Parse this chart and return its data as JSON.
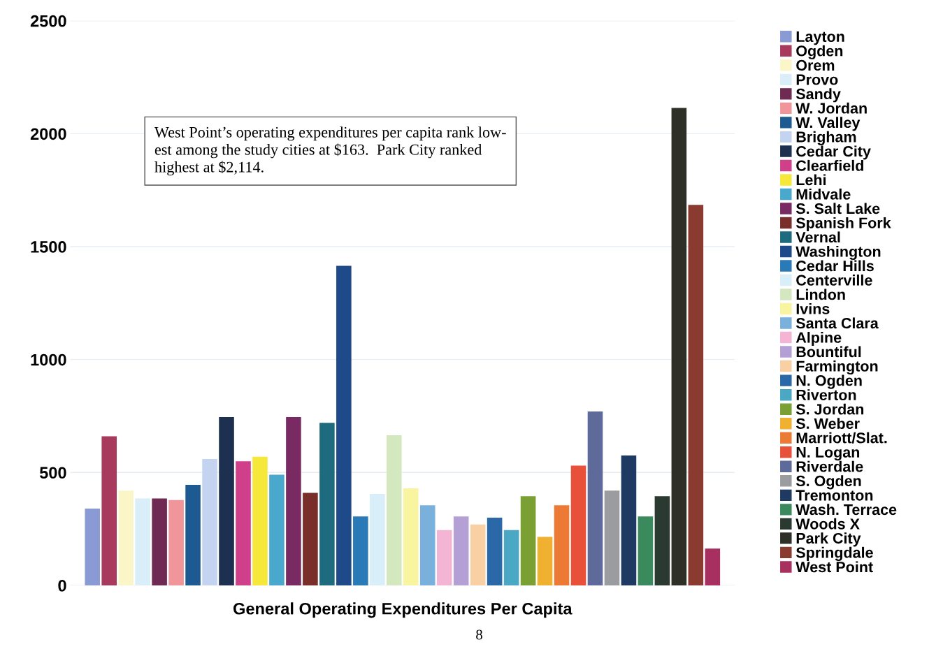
{
  "chart_data": {
    "type": "bar",
    "xlabel": "General Operating Expenditures Per Capita",
    "categories": [
      null
    ],
    "series": [
      {
        "name": "Layton",
        "color": "#8a9ad4",
        "values": [
          340
        ]
      },
      {
        "name": "Ogden",
        "color": "#a83a5e",
        "values": [
          660
        ]
      },
      {
        "name": "Orem",
        "color": "#fbf6c8",
        "values": [
          420
        ]
      },
      {
        "name": "Provo",
        "color": "#d9eef8",
        "values": [
          385
        ]
      },
      {
        "name": "Sandy",
        "color": "#6e2a52",
        "values": [
          385
        ]
      },
      {
        "name": "W. Jordan",
        "color": "#f0959a",
        "values": [
          378
        ]
      },
      {
        "name": "W. Valley",
        "color": "#1e5a92",
        "values": [
          445
        ]
      },
      {
        "name": "Brigham",
        "color": "#c4d4f0",
        "values": [
          560
        ]
      },
      {
        "name": "Cedar City",
        "color": "#1e3050",
        "values": [
          745
        ]
      },
      {
        "name": "Clearfield",
        "color": "#d0408a",
        "values": [
          550
        ]
      },
      {
        "name": "Lehi",
        "color": "#f6e83a",
        "values": [
          570
        ]
      },
      {
        "name": "Midvale",
        "color": "#4aa8cc",
        "values": [
          490
        ]
      },
      {
        "name": "S. Salt Lake",
        "color": "#7a2a62",
        "values": [
          745
        ]
      },
      {
        "name": "Spanish Fork",
        "color": "#7a2e2a",
        "values": [
          410
        ]
      },
      {
        "name": "Vernal",
        "color": "#1e6a7e",
        "values": [
          720
        ]
      },
      {
        "name": "Washington",
        "color": "#1e4a8a",
        "values": [
          1415
        ]
      },
      {
        "name": "Cedar Hills",
        "color": "#2a7ab8",
        "values": [
          305
        ]
      },
      {
        "name": "Centerville",
        "color": "#d8eef8",
        "values": [
          405
        ]
      },
      {
        "name": "Lindon",
        "color": "#d4e8c0",
        "values": [
          665
        ]
      },
      {
        "name": "Ivins",
        "color": "#f8f4a0",
        "values": [
          430
        ]
      },
      {
        "name": "Santa Clara",
        "color": "#7ab0dc",
        "values": [
          355
        ]
      },
      {
        "name": "Alpine",
        "color": "#f4b4d4",
        "values": [
          245
        ]
      },
      {
        "name": "Bountiful",
        "color": "#b4a0d4",
        "values": [
          305
        ]
      },
      {
        "name": "Farmington",
        "color": "#f8d0a4",
        "values": [
          270
        ]
      },
      {
        "name": "N. Ogden",
        "color": "#2a68a8",
        "values": [
          300
        ]
      },
      {
        "name": "Riverton",
        "color": "#4aa8c4",
        "values": [
          245
        ]
      },
      {
        "name": "S. Jordan",
        "color": "#7aa034",
        "values": [
          395
        ]
      },
      {
        "name": "S. Weber",
        "color": "#f0b030",
        "values": [
          215
        ]
      },
      {
        "name": "Marriott/Slat.",
        "color": "#ec7a34",
        "values": [
          355
        ]
      },
      {
        "name": "N. Logan",
        "color": "#e8503a",
        "values": [
          530
        ]
      },
      {
        "name": "Riverdale",
        "color": "#5e6a9a",
        "values": [
          770
        ]
      },
      {
        "name": "S. Ogden",
        "color": "#9a9ca0",
        "values": [
          420
        ]
      },
      {
        "name": "Tremonton",
        "color": "#1e3a62",
        "values": [
          575
        ]
      },
      {
        "name": "Wash. Terrace",
        "color": "#3a8a5e",
        "values": [
          305
        ]
      },
      {
        "name": "Woods X",
        "color": "#2a3a30",
        "values": [
          395
        ]
      },
      {
        "name": "Park City",
        "color": "#2e3028",
        "values": [
          2114
        ]
      },
      {
        "name": "Springdale",
        "color": "#8a3a2e",
        "values": [
          1685
        ]
      },
      {
        "name": "West Point",
        "color": "#a83060",
        "values": [
          163
        ]
      }
    ],
    "ylim": [
      0,
      2500
    ],
    "yticks": [
      0,
      500,
      1000,
      1500,
      2000,
      2500
    ],
    "grid": "y",
    "legend": "right",
    "annotations": [
      "West Point’s operating expenditures per capita rank low-\nest among the study cities at $163.  Park City ranked\nhighest at $2,114.",
      "8"
    ]
  }
}
